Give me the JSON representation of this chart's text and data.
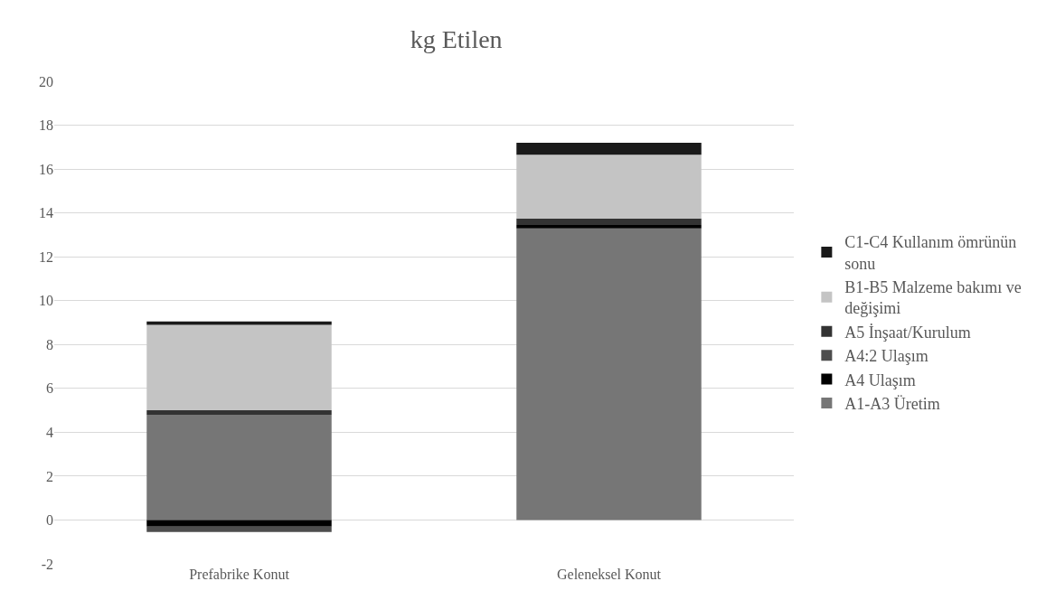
{
  "chart_data": {
    "type": "bar",
    "title": "kg Etilen",
    "categories": [
      "Prefabrike Konut",
      "Geleneksel Konut"
    ],
    "stacked": true,
    "series": [
      {
        "name": "A1-A3 Üretim",
        "color": "#767676",
        "values": [
          4.8,
          13.3
        ]
      },
      {
        "name": "A4 Ulaşım",
        "color": "#000000",
        "values": [
          -0.3,
          0.15
        ]
      },
      {
        "name": "A4:2 Ulaşım",
        "color": "#4d4d4d",
        "values": [
          -0.25,
          0
        ]
      },
      {
        "name": "A5 İnşaat/Kurulum",
        "color": "#333333",
        "values": [
          0.2,
          0.3
        ]
      },
      {
        "name": "B1-B5 Malzeme bakımı ve değişimi",
        "color": "#c4c4c4",
        "values": [
          3.9,
          2.9
        ]
      },
      {
        "name": "C1-C4 Kullanım ömrünün sonu",
        "color": "#1a1a1a",
        "values": [
          0.15,
          0.55
        ]
      }
    ],
    "ylim": [
      -2,
      20
    ],
    "yticks": [
      -2,
      0,
      2,
      4,
      6,
      8,
      10,
      12,
      14,
      16,
      18,
      20
    ],
    "grid": "y",
    "legend": "right"
  }
}
